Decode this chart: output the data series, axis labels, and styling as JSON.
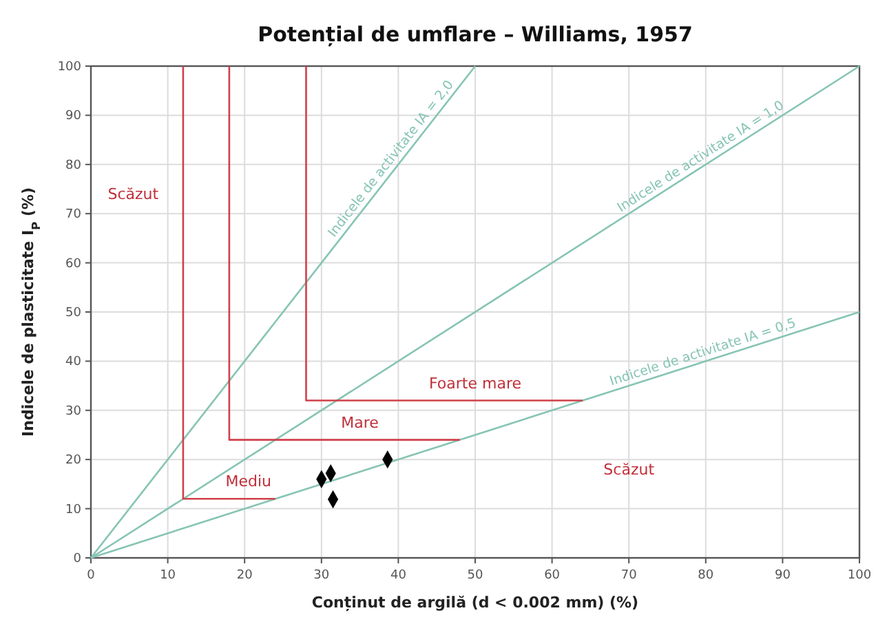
{
  "chart_data": {
    "type": "line",
    "title": "Potențial de umflare – Williams, 1957",
    "xlabel": "Conținut de argilă (d < 0.002 mm) (%)",
    "ylabel": "Indicele de plasticitate I$_{P}$ (%)",
    "xlim": [
      0,
      100
    ],
    "ylim": [
      0,
      100
    ],
    "xticks": [
      0,
      10,
      20,
      30,
      40,
      50,
      60,
      70,
      80,
      90,
      100
    ],
    "yticks": [
      0,
      10,
      20,
      30,
      40,
      50,
      60,
      70,
      80,
      90,
      100
    ],
    "grid": true,
    "series": [
      {
        "name": "Indicele de activitate IA = 2,0",
        "color": "#86c4b4",
        "x": [
          0,
          50
        ],
        "values": [
          0,
          100
        ]
      },
      {
        "name": "Indicele de activitate IA = 1,0",
        "color": "#86c4b4",
        "x": [
          0,
          100
        ],
        "values": [
          0,
          100
        ]
      },
      {
        "name": "Indicele de activitate IA = 0,5",
        "color": "#86c4b4",
        "x": [
          0,
          100
        ],
        "values": [
          0,
          50
        ]
      },
      {
        "color": "#d0404a",
        "x": [
          12,
          12,
          24
        ],
        "values": [
          100,
          12,
          12
        ]
      },
      {
        "color": "#d0404a",
        "x": [
          18,
          18,
          48
        ],
        "values": [
          100,
          24,
          24
        ]
      },
      {
        "color": "#d0404a",
        "x": [
          28,
          28,
          64
        ],
        "values": [
          100,
          32,
          32
        ]
      },
      {
        "type": "scatter",
        "color": "#000000",
        "marker": "diamond",
        "x": [
          30,
          31.2,
          31.5,
          38.6
        ],
        "values": [
          16,
          17.2,
          11.9,
          20
        ]
      }
    ],
    "annotations": [
      "Scăzut",
      "Mediu",
      "Mare",
      "Foarte mare",
      "Scăzut"
    ]
  }
}
